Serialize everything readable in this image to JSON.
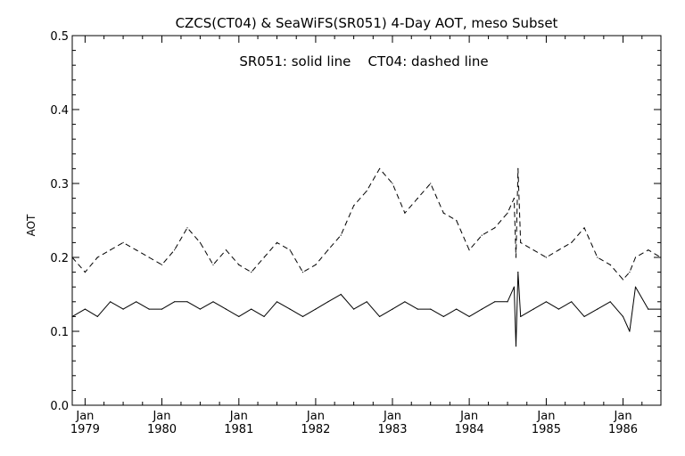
{
  "chart_data": {
    "type": "line",
    "title": "CZCS(CT04) & SeaWiFS(SR051) 4-Day AOT, meso Subset",
    "annotation": "SR051: solid line    CT04: dashed line",
    "xlabel": "",
    "ylabel": "AOT",
    "ylim": [
      0.0,
      0.5
    ],
    "xlim": [
      "1978-11-01",
      "1986-06-30"
    ],
    "yticks": [
      "0.0",
      "0.1",
      "0.2",
      "0.3",
      "0.4",
      "0.5"
    ],
    "xticks": [
      {
        "month": "Jan",
        "year": "1979",
        "date": "1979-01-01"
      },
      {
        "month": "Jan",
        "year": "1980",
        "date": "1980-01-01"
      },
      {
        "month": "Jan",
        "year": "1981",
        "date": "1981-01-01"
      },
      {
        "month": "Jan",
        "year": "1982",
        "date": "1982-01-01"
      },
      {
        "month": "Jan",
        "year": "1983",
        "date": "1983-01-01"
      },
      {
        "month": "Jan",
        "year": "1984",
        "date": "1984-01-01"
      },
      {
        "month": "Jan",
        "year": "1985",
        "date": "1985-01-01"
      },
      {
        "month": "Jan",
        "year": "1986",
        "date": "1986-01-01"
      }
    ],
    "grid": false,
    "series": [
      {
        "name": "SR051",
        "style": "solid",
        "x": [
          "1978-11-01",
          "1979-01-01",
          "1979-03-01",
          "1979-05-01",
          "1979-07-01",
          "1979-09-01",
          "1979-11-01",
          "1980-01-01",
          "1980-03-01",
          "1980-05-01",
          "1980-07-01",
          "1980-09-01",
          "1980-11-01",
          "1981-01-01",
          "1981-03-01",
          "1981-05-01",
          "1981-07-01",
          "1981-09-01",
          "1981-11-01",
          "1982-01-01",
          "1982-03-01",
          "1982-05-01",
          "1982-07-01",
          "1982-09-01",
          "1982-11-01",
          "1983-01-01",
          "1983-03-01",
          "1983-05-01",
          "1983-07-01",
          "1983-09-01",
          "1983-11-01",
          "1984-01-01",
          "1984-03-01",
          "1984-05-01",
          "1984-07-01",
          "1984-08-01",
          "1984-08-10",
          "1984-08-20",
          "1984-09-01",
          "1984-11-01",
          "1985-01-01",
          "1985-03-01",
          "1985-05-01",
          "1985-07-01",
          "1985-09-01",
          "1985-11-01",
          "1986-01-01",
          "1986-02-01",
          "1986-03-01",
          "1986-05-01",
          "1986-06-30"
        ],
        "values": [
          0.12,
          0.13,
          0.12,
          0.14,
          0.13,
          0.14,
          0.13,
          0.13,
          0.14,
          0.14,
          0.13,
          0.14,
          0.13,
          0.12,
          0.13,
          0.12,
          0.14,
          0.13,
          0.12,
          0.13,
          0.14,
          0.15,
          0.13,
          0.14,
          0.12,
          0.13,
          0.14,
          0.13,
          0.13,
          0.12,
          0.13,
          0.12,
          0.13,
          0.14,
          0.14,
          0.16,
          0.08,
          0.18,
          0.12,
          0.13,
          0.14,
          0.13,
          0.14,
          0.12,
          0.13,
          0.14,
          0.12,
          0.1,
          0.16,
          0.13,
          0.13
        ]
      },
      {
        "name": "CT04",
        "style": "dashed",
        "x": [
          "1978-11-01",
          "1979-01-01",
          "1979-03-01",
          "1979-05-01",
          "1979-07-01",
          "1979-09-01",
          "1979-11-01",
          "1980-01-01",
          "1980-03-01",
          "1980-05-01",
          "1980-07-01",
          "1980-09-01",
          "1980-11-01",
          "1981-01-01",
          "1981-03-01",
          "1981-05-01",
          "1981-07-01",
          "1981-09-01",
          "1981-11-01",
          "1982-01-01",
          "1982-03-01",
          "1982-05-01",
          "1982-07-01",
          "1982-09-01",
          "1982-11-01",
          "1983-01-01",
          "1983-03-01",
          "1983-05-01",
          "1983-07-01",
          "1983-09-01",
          "1983-11-01",
          "1984-01-01",
          "1984-03-01",
          "1984-05-01",
          "1984-07-01",
          "1984-08-01",
          "1984-08-10",
          "1984-08-20",
          "1984-09-01",
          "1984-11-01",
          "1985-01-01",
          "1985-03-01",
          "1985-05-01",
          "1985-07-01",
          "1985-09-01",
          "1985-11-01",
          "1986-01-01",
          "1986-02-01",
          "1986-03-01",
          "1986-05-01",
          "1986-06-30"
        ],
        "values": [
          0.2,
          0.18,
          0.2,
          0.21,
          0.22,
          0.21,
          0.2,
          0.19,
          0.21,
          0.24,
          0.22,
          0.19,
          0.21,
          0.19,
          0.18,
          0.2,
          0.22,
          0.21,
          0.18,
          0.19,
          0.21,
          0.23,
          0.27,
          0.29,
          0.32,
          0.3,
          0.26,
          0.28,
          0.3,
          0.26,
          0.25,
          0.21,
          0.23,
          0.24,
          0.26,
          0.28,
          0.2,
          0.32,
          0.22,
          0.21,
          0.2,
          0.21,
          0.22,
          0.24,
          0.2,
          0.19,
          0.17,
          0.18,
          0.2,
          0.21,
          0.2
        ]
      }
    ]
  }
}
